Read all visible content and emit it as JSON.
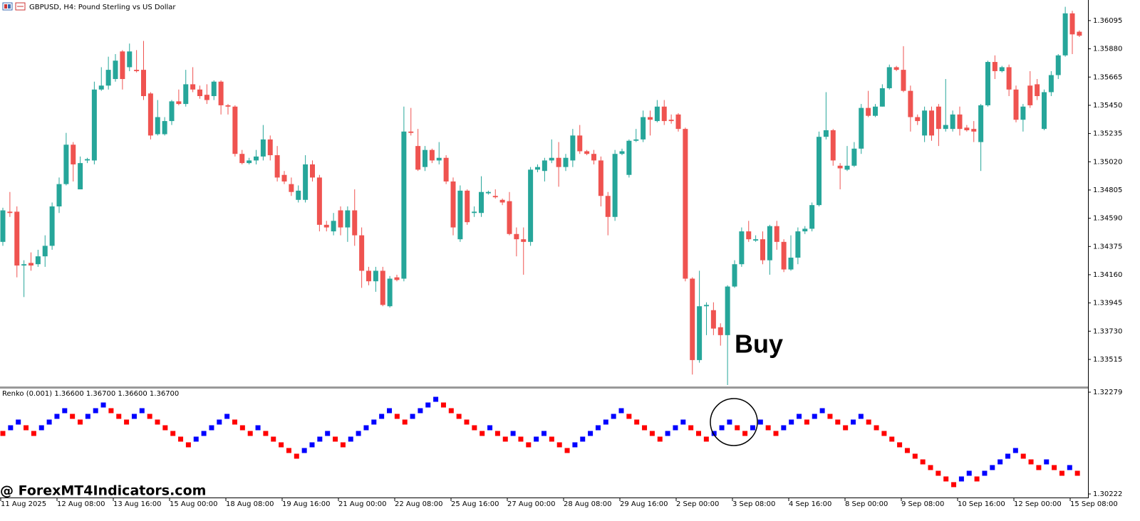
{
  "title": "GBPUSD, H4:  Pound Sterling vs US Dollar",
  "watermark": "@ ForexMT4Indicators.com",
  "chart_data": [
    {
      "type": "candlestick",
      "annotation": "Buy",
      "up_color": "#26a69a",
      "down_color": "#ef5350",
      "ylim": [
        1.33309,
        1.36165
      ],
      "yticks": [
        1.36095,
        {
          "value": 1.3588,
          "label": "1.35880"
        },
        1.35665,
        {
          "value": 1.3545,
          "label": "1.35450"
        },
        1.35235,
        {
          "value": 1.3502,
          "label": "1.35020"
        },
        1.34805,
        {
          "value": 1.3459,
          "label": "1.34590"
        },
        1.34375,
        {
          "value": 1.3416,
          "label": "1.34160"
        },
        1.33945,
        {
          "value": 1.3373,
          "label": "1.33730"
        },
        1.33515
      ],
      "categories": [
        "11 Aug 2025",
        "12 Aug 08:00",
        "13 Aug 16:00",
        "15 Aug 00:00",
        "18 Aug 08:00",
        "19 Aug 16:00",
        "21 Aug 00:00",
        "22 Aug 08:00",
        "25 Aug 16:00",
        "27 Aug 00:00",
        "28 Aug 08:00",
        "29 Aug 16:00",
        "2 Sep 00:00",
        "3 Sep 08:00",
        "4 Sep 16:00",
        "8 Sep 00:00",
        "9 Sep 08:00",
        "10 Sep 16:00",
        "12 Sep 00:00",
        "15 Sep 08:00"
      ],
      "candles": [
        [
          1.3441,
          1.3467,
          1.3438,
          1.3465
        ],
        [
          1.3464,
          1.3479,
          1.346,
          1.3463
        ],
        [
          1.3464,
          1.3468,
          1.3414,
          1.3423
        ],
        [
          1.3423,
          1.3427,
          1.3399,
          1.3424
        ],
        [
          1.3425,
          1.3433,
          1.3419,
          1.3423
        ],
        [
          1.3424,
          1.3435,
          1.3422,
          1.343
        ],
        [
          1.343,
          1.3446,
          1.3422,
          1.3438
        ],
        [
          1.3438,
          1.3471,
          1.3435,
          1.3468
        ],
        [
          1.3468,
          1.349,
          1.3463,
          1.3485
        ],
        [
          1.3485,
          1.3524,
          1.3484,
          1.3515
        ],
        [
          1.3515,
          1.3517,
          1.3487,
          1.35
        ],
        [
          1.3481,
          1.3506,
          1.3481,
          1.3501
        ],
        [
          1.3503,
          1.3505,
          1.3501,
          1.3504
        ],
        [
          1.3503,
          1.3563,
          1.35,
          1.3557
        ],
        [
          1.3557,
          1.3574,
          1.3556,
          1.356
        ],
        [
          1.356,
          1.3582,
          1.3557,
          1.3572
        ],
        [
          1.3565,
          1.3584,
          1.3563,
          1.3579
        ],
        [
          1.3586,
          1.3587,
          1.3557,
          1.3565
        ],
        [
          1.3574,
          1.3592,
          1.3571,
          1.3586
        ],
        [
          1.3572,
          1.3587,
          1.357,
          1.3571
        ],
        [
          1.3572,
          1.3594,
          1.3549,
          1.3552
        ],
        [
          1.3554,
          1.3555,
          1.3519,
          1.3522
        ],
        [
          1.3523,
          1.3549,
          1.3522,
          1.3536
        ],
        [
          1.3523,
          1.3536,
          1.3522,
          1.3533
        ],
        [
          1.3533,
          1.3549,
          1.353,
          1.3548
        ],
        [
          1.3548,
          1.3557,
          1.3545,
          1.3546
        ],
        [
          1.3546,
          1.3572,
          1.3544,
          1.3561
        ],
        [
          1.3561,
          1.3574,
          1.3555,
          1.3557
        ],
        [
          1.3557,
          1.356,
          1.355,
          1.3552
        ],
        [
          1.3553,
          1.3561,
          1.3546,
          1.3549
        ],
        [
          1.3552,
          1.3564,
          1.3549,
          1.3563
        ],
        [
          1.3563,
          1.3564,
          1.3538,
          1.3545
        ],
        [
          1.3545,
          1.3546,
          1.3538,
          1.3544
        ],
        [
          1.3544,
          1.3545,
          1.3506,
          1.3508
        ],
        [
          1.3508,
          1.3511,
          1.35,
          1.3501
        ],
        [
          1.3501,
          1.3505,
          1.35,
          1.3503
        ],
        [
          1.3503,
          1.3511,
          1.35,
          1.3506
        ],
        [
          1.3506,
          1.353,
          1.3503,
          1.3519
        ],
        [
          1.3519,
          1.3522,
          1.3503,
          1.3507
        ],
        [
          1.3507,
          1.3514,
          1.3487,
          1.349
        ],
        [
          1.3492,
          1.3495,
          1.3485,
          1.3487
        ],
        [
          1.3485,
          1.349,
          1.3476,
          1.3479
        ],
        [
          1.3473,
          1.3484,
          1.3471,
          1.348
        ],
        [
          1.3473,
          1.3507,
          1.3471,
          1.35
        ],
        [
          1.35,
          1.3503,
          1.3487,
          1.349
        ],
        [
          1.349,
          1.3492,
          1.3449,
          1.3454
        ],
        [
          1.3454,
          1.3457,
          1.3449,
          1.3452
        ],
        [
          1.3449,
          1.3463,
          1.3446,
          1.3457
        ],
        [
          1.3465,
          1.3468,
          1.3446,
          1.3452
        ],
        [
          1.3452,
          1.3468,
          1.3441,
          1.3465
        ],
        [
          1.3465,
          1.3481,
          1.3438,
          1.3446
        ],
        [
          1.3446,
          1.3452,
          1.3406,
          1.3419
        ],
        [
          1.3419,
          1.3422,
          1.3408,
          1.3411
        ],
        [
          1.3411,
          1.3422,
          1.3403,
          1.3419
        ],
        [
          1.3419,
          1.3422,
          1.3392,
          1.3393
        ],
        [
          1.3392,
          1.3415,
          1.3391,
          1.3413
        ],
        [
          1.3414,
          1.3416,
          1.3411,
          1.3412
        ],
        [
          1.3413,
          1.3544,
          1.3411,
          1.3525
        ],
        [
          1.3525,
          1.3543,
          1.3522,
          1.3524
        ],
        [
          1.3514,
          1.3527,
          1.3495,
          1.3496
        ],
        [
          1.3498,
          1.3514,
          1.3495,
          1.3511
        ],
        [
          1.3511,
          1.3512,
          1.3501,
          1.3503
        ],
        [
          1.3503,
          1.3517,
          1.35,
          1.3505
        ],
        [
          1.3505,
          1.3507,
          1.3485,
          1.3487
        ],
        [
          1.3487,
          1.349,
          1.3446,
          1.3452
        ],
        [
          1.3443,
          1.3484,
          1.3441,
          1.348
        ],
        [
          1.348,
          1.3481,
          1.3454,
          1.3456
        ],
        [
          1.3463,
          1.3468,
          1.346,
          1.3464
        ],
        [
          1.3463,
          1.3491,
          1.346,
          1.3479
        ],
        [
          1.3478,
          1.348,
          1.3477,
          1.3479
        ],
        [
          1.3476,
          1.3481,
          1.3474,
          1.3475
        ],
        [
          1.3473,
          1.3474,
          1.3469,
          1.3471
        ],
        [
          1.3472,
          1.3479,
          1.3446,
          1.3447
        ],
        [
          1.3447,
          1.3452,
          1.343,
          1.3443
        ],
        [
          1.3443,
          1.3452,
          1.3416,
          1.3441
        ],
        [
          1.3441,
          1.3498,
          1.3438,
          1.3496
        ],
        [
          1.3496,
          1.35,
          1.3494,
          1.3498
        ],
        [
          1.3495,
          1.3505,
          1.3487,
          1.3503
        ],
        [
          1.3503,
          1.3519,
          1.3501,
          1.3505
        ],
        [
          1.3505,
          1.3517,
          1.3483,
          1.3498
        ],
        [
          1.3498,
          1.3508,
          1.3495,
          1.3505
        ],
        [
          1.3503,
          1.3527,
          1.3498,
          1.3522
        ],
        [
          1.3522,
          1.353,
          1.3508,
          1.351
        ],
        [
          1.351,
          1.3511,
          1.3507,
          1.3508
        ],
        [
          1.3508,
          1.3511,
          1.35,
          1.3503
        ],
        [
          1.3503,
          1.3506,
          1.3468,
          1.3476
        ],
        [
          1.3476,
          1.3479,
          1.3446,
          1.346
        ],
        [
          1.346,
          1.3511,
          1.3457,
          1.3508
        ],
        [
          1.3508,
          1.3512,
          1.3507,
          1.351
        ],
        [
          1.3492,
          1.3519,
          1.349,
          1.3518
        ],
        [
          1.3518,
          1.3527,
          1.3517,
          1.3519
        ],
        [
          1.3519,
          1.3541,
          1.3517,
          1.3536
        ],
        [
          1.3536,
          1.3541,
          1.3522,
          1.3534
        ],
        [
          1.3533,
          1.3549,
          1.3532,
          1.3544
        ],
        [
          1.3544,
          1.3549,
          1.353,
          1.3533
        ],
        [
          1.3534,
          1.3538,
          1.3531,
          1.3533
        ],
        [
          1.3538,
          1.3539,
          1.3525,
          1.3527
        ],
        [
          1.3527,
          1.3528,
          1.3411,
          1.3413
        ],
        [
          1.3413,
          1.3414,
          1.334,
          1.3351
        ],
        [
          1.3351,
          1.3419,
          1.3349,
          1.3392
        ],
        [
          1.3392,
          1.3395,
          1.337,
          1.3393
        ],
        [
          1.3389,
          1.3395,
          1.337,
          1.3375
        ],
        [
          1.3376,
          1.3379,
          1.3362,
          1.337
        ],
        [
          1.337,
          1.3408,
          1.3332,
          1.3407
        ],
        [
          1.3407,
          1.3427,
          1.3406,
          1.3424
        ],
        [
          1.3424,
          1.3452,
          1.3422,
          1.3449
        ],
        [
          1.3449,
          1.3457,
          1.3441,
          1.3443
        ],
        [
          1.3442,
          1.3446,
          1.3441,
          1.3443
        ],
        [
          1.3443,
          1.3449,
          1.3424,
          1.3427
        ],
        [
          1.3427,
          1.3454,
          1.3416,
          1.3453
        ],
        [
          1.3453,
          1.3457,
          1.3435,
          1.3441
        ],
        [
          1.3441,
          1.3443,
          1.3418,
          1.342
        ],
        [
          1.342,
          1.3446,
          1.3419,
          1.3429
        ],
        [
          1.3429,
          1.3452,
          1.3424,
          1.3449
        ],
        [
          1.3449,
          1.3453,
          1.3447,
          1.3451
        ],
        [
          1.3451,
          1.3471,
          1.3449,
          1.3469
        ],
        [
          1.3469,
          1.3525,
          1.3468,
          1.3521
        ],
        [
          1.3521,
          1.3555,
          1.3519,
          1.3526
        ],
        [
          1.3526,
          1.3527,
          1.3499,
          1.3503
        ],
        [
          1.3499,
          1.3501,
          1.3481,
          1.3497
        ],
        [
          1.3496,
          1.3514,
          1.3495,
          1.3499
        ],
        [
          1.3499,
          1.3517,
          1.3498,
          1.3512
        ],
        [
          1.3512,
          1.3546,
          1.3508,
          1.3543
        ],
        [
          1.3543,
          1.3556,
          1.3536,
          1.3537
        ],
        [
          1.3537,
          1.3546,
          1.3536,
          1.3544
        ],
        [
          1.3544,
          1.3561,
          1.3544,
          1.3558
        ],
        [
          1.3558,
          1.3576,
          1.3557,
          1.3574
        ],
        [
          1.3574,
          1.3575,
          1.3571,
          1.3572
        ],
        [
          1.3572,
          1.359,
          1.3555,
          1.3556
        ],
        [
          1.3556,
          1.356,
          1.3525,
          1.3536
        ],
        [
          1.3536,
          1.3538,
          1.353,
          1.3533
        ],
        [
          1.3522,
          1.3544,
          1.3517,
          1.3541
        ],
        [
          1.3541,
          1.3544,
          1.3518,
          1.3522
        ],
        [
          1.3544,
          1.3546,
          1.3514,
          1.3527
        ],
        [
          1.3527,
          1.3565,
          1.3525,
          1.353
        ],
        [
          1.3527,
          1.3541,
          1.3525,
          1.3538
        ],
        [
          1.3538,
          1.3544,
          1.3522,
          1.3527
        ],
        [
          1.3528,
          1.353,
          1.3525,
          1.3526
        ],
        [
          1.3527,
          1.3533,
          1.3517,
          1.3525
        ],
        [
          1.3517,
          1.3546,
          1.3495,
          1.3545
        ],
        [
          1.3545,
          1.3579,
          1.3544,
          1.3578
        ],
        [
          1.3578,
          1.3583,
          1.3565,
          1.3571
        ],
        [
          1.3571,
          1.3575,
          1.357,
          1.3574
        ],
        [
          1.3574,
          1.3576,
          1.3552,
          1.3557
        ],
        [
          1.3557,
          1.356,
          1.3532,
          1.3534
        ],
        [
          1.3534,
          1.3546,
          1.3525,
          1.3544
        ],
        [
          1.356,
          1.3571,
          1.3543,
          1.3545
        ],
        [
          1.3561,
          1.3565,
          1.3549,
          1.3552
        ],
        [
          1.3527,
          1.3557,
          1.3526,
          1.3555
        ],
        [
          1.3555,
          1.3571,
          1.3552,
          1.3568
        ],
        [
          1.3568,
          1.3584,
          1.3565,
          1.3583
        ],
        [
          1.3583,
          1.362,
          1.3582,
          1.3615
        ],
        [
          1.3615,
          1.3617,
          1.3584,
          1.3599
        ],
        [
          1.3601,
          1.3602,
          1.3597,
          1.3598
        ]
      ]
    },
    {
      "type": "renko",
      "title": "Renko (0.001) 1.36600 1.36700 1.36600 1.36700",
      "up_color": "#0000ff",
      "down_color": "#ff0000",
      "ylim": [
        1.3015,
        1.32351
      ],
      "yticks": [
        1.32279,
        1.30222
      ],
      "values": [
        1.31445,
        1.3156,
        1.31675,
        1.3156,
        1.31445,
        1.3156,
        1.31675,
        1.3179,
        1.31905,
        1.3179,
        1.31675,
        1.3179,
        1.31905,
        1.3202,
        1.31905,
        1.3179,
        1.31675,
        1.3179,
        1.31905,
        1.3179,
        1.31675,
        1.3156,
        1.31445,
        1.3133,
        1.31215,
        1.3133,
        1.31445,
        1.3156,
        1.31675,
        1.3179,
        1.31675,
        1.3156,
        1.31445,
        1.3156,
        1.31445,
        1.3133,
        1.31215,
        1.311,
        1.30985,
        1.311,
        1.31215,
        1.3133,
        1.31445,
        1.3133,
        1.31215,
        1.3133,
        1.31445,
        1.3156,
        1.31675,
        1.3179,
        1.31905,
        1.3179,
        1.31675,
        1.3179,
        1.31905,
        1.3202,
        1.32135,
        1.3202,
        1.31905,
        1.3179,
        1.31675,
        1.3156,
        1.31445,
        1.3156,
        1.31445,
        1.3133,
        1.31445,
        1.3133,
        1.31215,
        1.3133,
        1.31445,
        1.3133,
        1.31215,
        1.311,
        1.31215,
        1.3133,
        1.31445,
        1.3156,
        1.31675,
        1.3179,
        1.31905,
        1.3179,
        1.31675,
        1.3156,
        1.31445,
        1.3133,
        1.31445,
        1.3156,
        1.31675,
        1.3156,
        1.31445,
        1.3133,
        1.31445,
        1.3156,
        1.31675,
        1.3156,
        1.31445,
        1.3156,
        1.31675,
        1.3156,
        1.31445,
        1.3156,
        1.31675,
        1.3179,
        1.31675,
        1.3179,
        1.31905,
        1.3179,
        1.31675,
        1.3156,
        1.31675,
        1.3179,
        1.31675,
        1.3156,
        1.31445,
        1.3133,
        1.31215,
        1.311,
        1.30985,
        1.3087,
        1.30755,
        1.3064,
        1.30525,
        1.3041,
        1.30525,
        1.3064,
        1.30525,
        1.3064,
        1.30755,
        1.3087,
        1.30985,
        1.311,
        1.30985,
        1.3087,
        1.30755,
        1.3087,
        1.30755,
        1.3064,
        1.30755,
        1.3064
      ]
    }
  ]
}
